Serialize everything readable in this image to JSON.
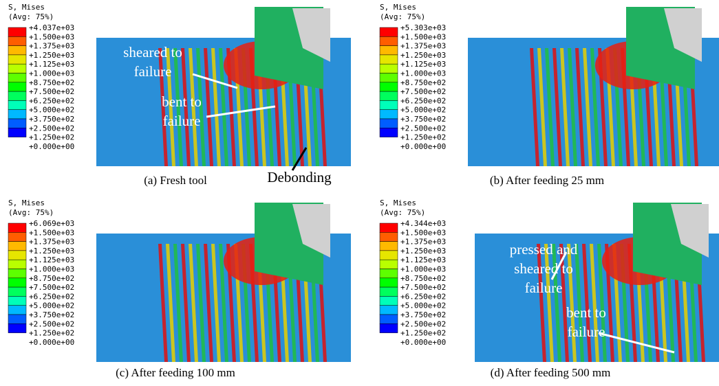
{
  "panels": [
    {
      "legend": {
        "title": "S, Mises",
        "subtitle": "(Avg: 75%)",
        "labels": [
          "+4.037e+03",
          "+1.500e+03",
          "+1.375e+03",
          "+1.250e+03",
          "+1.125e+03",
          "+1.000e+03",
          "+8.750e+02",
          "+7.500e+02",
          "+6.250e+02",
          "+5.000e+02",
          "+3.750e+02",
          "+2.500e+02",
          "+1.250e+02",
          "+0.000e+00"
        ]
      },
      "annotations": [
        [
          "sheared to",
          "failure"
        ],
        [
          "bent to",
          "failure"
        ],
        [
          "Debonding"
        ]
      ],
      "caption": "(a) Fresh tool"
    },
    {
      "legend": {
        "title": "S, Mises",
        "subtitle": "(Avg: 75%)",
        "labels": [
          "+5.303e+03",
          "+1.500e+03",
          "+1.375e+03",
          "+1.250e+03",
          "+1.125e+03",
          "+1.000e+03",
          "+8.750e+02",
          "+7.500e+02",
          "+6.250e+02",
          "+5.000e+02",
          "+3.750e+02",
          "+2.500e+02",
          "+1.250e+02",
          "+0.000e+00"
        ]
      },
      "annotations": [],
      "caption": "(b) After feeding 25 mm"
    },
    {
      "legend": {
        "title": "S, Mises",
        "subtitle": "(Avg: 75%)",
        "labels": [
          "+6.069e+03",
          "+1.500e+03",
          "+1.375e+03",
          "+1.250e+03",
          "+1.125e+03",
          "+1.000e+03",
          "+8.750e+02",
          "+7.500e+02",
          "+6.250e+02",
          "+5.000e+02",
          "+3.750e+02",
          "+2.500e+02",
          "+1.250e+02",
          "+0.000e+00"
        ]
      },
      "annotations": [],
      "caption": "(c) After feeding 100 mm"
    },
    {
      "legend": {
        "title": "S, Mises",
        "subtitle": "(Avg: 75%)",
        "labels": [
          "+4.344e+03",
          "+1.500e+03",
          "+1.375e+03",
          "+1.250e+03",
          "+1.125e+03",
          "+1.000e+03",
          "+8.750e+02",
          "+7.500e+02",
          "+6.250e+02",
          "+5.000e+02",
          "+3.750e+02",
          "+2.500e+02",
          "+1.250e+02",
          "+0.000e+00"
        ]
      },
      "annotations": [
        [
          "pressed and",
          "sheared to",
          "failure"
        ],
        [
          "bent to",
          "failure"
        ]
      ],
      "caption": "(d) After feeding 500 mm"
    }
  ]
}
